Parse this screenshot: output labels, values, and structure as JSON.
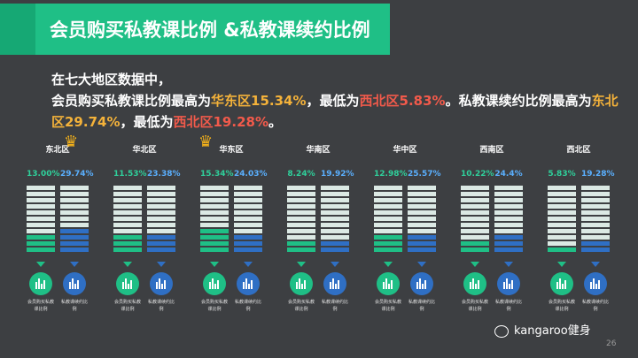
{
  "title": "会员购买私教课比例 &私教课续约比例",
  "intro": {
    "line1": "在七大地区数据中，",
    "p1": "会员购买私教课比例最高为",
    "p2": "华东区15.34%",
    "p3": "，最低为",
    "p4": "西北区5.83%",
    "p5": "。私教课续约比例最高为",
    "p6": "东北区29.74%",
    "p7": "，最低为",
    "p8": "西北区19.28%",
    "p9": "。"
  },
  "regions": [
    {
      "name": "东北区",
      "crown": "right",
      "purchase_pct": "13.00%",
      "renew_pct": "29.74%",
      "purchase": 13.0,
      "renew": 29.74
    },
    {
      "name": "华北区",
      "crown": "",
      "purchase_pct": "11.53%",
      "renew_pct": "23.38%",
      "purchase": 11.53,
      "renew": 23.38
    },
    {
      "name": "华东区",
      "crown": "left",
      "purchase_pct": "15.34%",
      "renew_pct": "24.03%",
      "purchase": 15.34,
      "renew": 24.03
    },
    {
      "name": "华南区",
      "crown": "",
      "purchase_pct": "8.24%",
      "renew_pct": "19.92%",
      "purchase": 8.24,
      "renew": 19.92
    },
    {
      "name": "华中区",
      "crown": "",
      "purchase_pct": "12.98%",
      "renew_pct": "25.57%",
      "purchase": 12.98,
      "renew": 25.57
    },
    {
      "name": "西南区",
      "crown": "",
      "purchase_pct": "10.22%",
      "renew_pct": "24.4%",
      "purchase": 10.22,
      "renew": 24.4
    },
    {
      "name": "西北区",
      "crown": "",
      "purchase_pct": "5.83%",
      "renew_pct": "19.28%",
      "purchase": 5.83,
      "renew": 19.28
    }
  ],
  "captions": {
    "purchase": "会员购买私教课比例",
    "renew": "私教课续约比例"
  },
  "colors": {
    "green": "#1fbf86",
    "blue": "#2f6fc4",
    "orange": "#f4b23a",
    "red": "#f25a4b"
  },
  "icons": {
    "crown": "crown-icon",
    "chart": "bar-chart-icon",
    "footer": "wechat-icon"
  },
  "footer": {
    "brand": "kangaroo健身",
    "page": "26"
  }
}
